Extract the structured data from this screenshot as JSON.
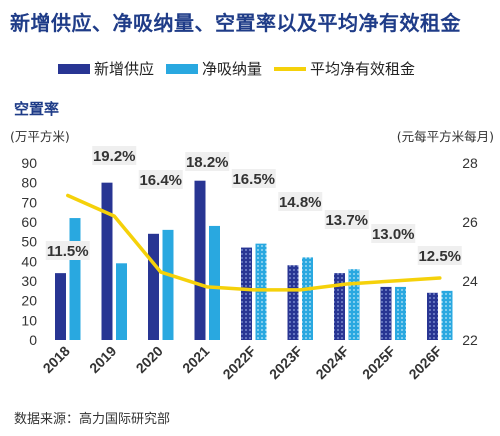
{
  "title": "新增供应、净吸纳量、空置率以及平均净有效租金",
  "vacancy_label": "空置率",
  "left_unit": "(万平方米)",
  "right_unit": "(元每平方米每月)",
  "source": "数据来源：高力国际研究部",
  "colors": {
    "title": "#1f3c88",
    "supply": "#283593",
    "absorption": "#29a8e0",
    "rent": "#f5d10a",
    "label_bg": "#efefef"
  },
  "chart_data": {
    "type": "bar",
    "categories": [
      "2018",
      "2019",
      "2020",
      "2021",
      "2022F",
      "2023F",
      "2024F",
      "2025F",
      "2026F"
    ],
    "forecast_categories": [
      "2022F",
      "2023F",
      "2024F",
      "2025F",
      "2026F"
    ],
    "series": [
      {
        "name": "新增供应",
        "axis": "left",
        "kind": "bar",
        "values": [
          34,
          80,
          54,
          81,
          47,
          38,
          34,
          27,
          24
        ]
      },
      {
        "name": "净吸纳量",
        "axis": "left",
        "kind": "bar",
        "values": [
          62,
          39,
          56,
          58,
          49,
          42,
          36,
          27,
          25
        ]
      },
      {
        "name": "平均净有效租金",
        "axis": "right",
        "kind": "line",
        "values": [
          26.9,
          26.2,
          24.3,
          23.8,
          23.7,
          23.7,
          23.9,
          24.0,
          24.1
        ]
      }
    ],
    "vacancy_rate": [
      "11.5%",
      "19.2%",
      "16.4%",
      "18.2%",
      "16.5%",
      "14.8%",
      "13.7%",
      "13.0%",
      "12.5%"
    ],
    "left_axis": {
      "min": 0,
      "max": 90,
      "ticks": [
        0,
        10,
        20,
        30,
        40,
        50,
        60,
        70,
        80,
        90
      ]
    },
    "right_axis": {
      "min": 22,
      "max": 28,
      "ticks": [
        22,
        24,
        26,
        28
      ]
    },
    "legend": "top",
    "grid": false
  }
}
